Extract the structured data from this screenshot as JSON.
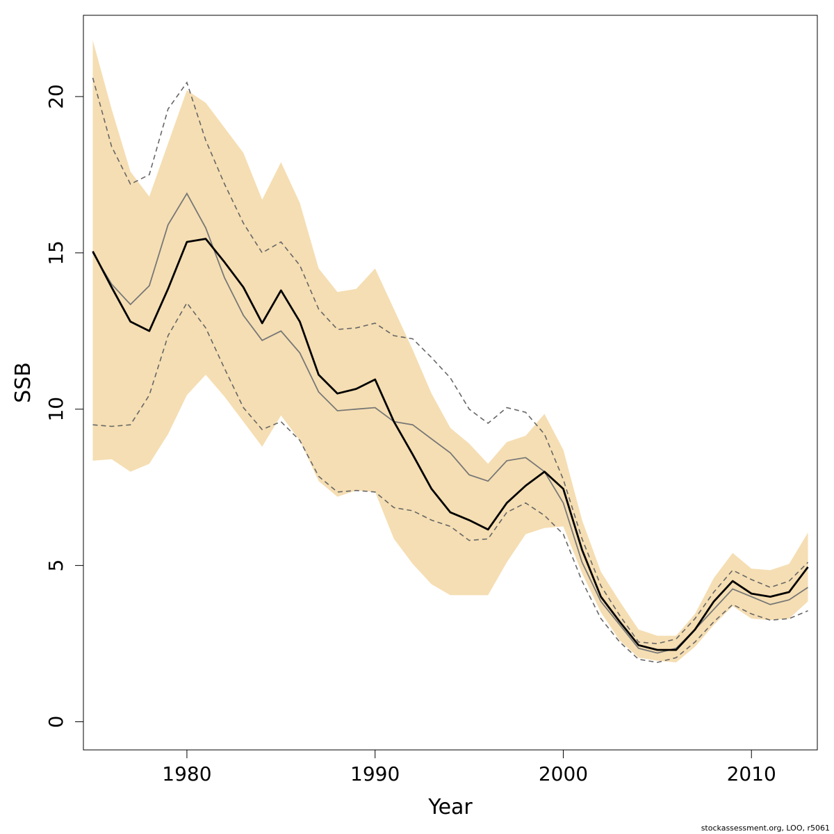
{
  "chart_data": {
    "type": "line",
    "xlabel": "Year",
    "ylabel": "SSB",
    "xlim": [
      1974.5,
      2013.5
    ],
    "ylim": [
      -0.9,
      22.6
    ],
    "x_ticks": [
      1980,
      1990,
      2000,
      2010
    ],
    "y_ticks": [
      0,
      5,
      10,
      15,
      20
    ],
    "x_tick_labels": [
      "1980",
      "1990",
      "2000",
      "2010"
    ],
    "y_tick_labels": [
      "0",
      "5",
      "10",
      "15",
      "20"
    ],
    "colors": {
      "band": "#f5deb3",
      "estimate": "#000000",
      "loo_line": "#777777",
      "loo_bounds": "#666666"
    },
    "x": [
      1975,
      1976,
      1977,
      1978,
      1979,
      1980,
      1981,
      1982,
      1983,
      1984,
      1985,
      1986,
      1987,
      1988,
      1989,
      1990,
      1991,
      1992,
      1993,
      1994,
      1995,
      1996,
      1997,
      1998,
      1999,
      2000,
      2001,
      2002,
      2003,
      2004,
      2005,
      2006,
      2007,
      2008,
      2009,
      2010,
      2011,
      2012,
      2013
    ],
    "series": [
      {
        "role": "band_upper",
        "values": [
          21.8,
          19.6,
          17.6,
          16.8,
          18.5,
          20.2,
          19.8,
          19.0,
          18.2,
          16.7,
          17.9,
          16.6,
          14.5,
          13.75,
          13.85,
          14.5,
          13.2,
          11.9,
          10.5,
          9.4,
          8.9,
          8.25,
          8.95,
          9.15,
          9.85,
          8.7,
          6.45,
          4.8,
          3.85,
          2.95,
          2.75,
          2.75,
          3.45,
          4.6,
          5.4,
          4.9,
          4.85,
          5.05,
          6.05
        ]
      },
      {
        "role": "band_lower",
        "values": [
          8.35,
          8.4,
          8.0,
          8.25,
          9.2,
          10.45,
          11.1,
          10.4,
          9.6,
          8.8,
          9.8,
          9.0,
          7.7,
          7.2,
          7.4,
          7.35,
          5.85,
          5.05,
          4.4,
          4.05,
          4.05,
          4.05,
          5.1,
          6.0,
          6.2,
          6.25,
          4.75,
          3.5,
          2.6,
          2.05,
          1.95,
          1.9,
          2.4,
          3.1,
          3.7,
          3.3,
          3.25,
          3.3,
          3.85
        ]
      },
      {
        "role": "estimate",
        "values": [
          15.05,
          13.9,
          12.8,
          12.5,
          13.85,
          15.35,
          15.45,
          14.7,
          13.9,
          12.75,
          13.8,
          12.8,
          11.1,
          10.5,
          10.65,
          10.95,
          9.6,
          8.55,
          7.45,
          6.7,
          6.45,
          6.15,
          7.0,
          7.55,
          8.0,
          7.45,
          5.5,
          4.0,
          3.2,
          2.45,
          2.3,
          2.3,
          2.95,
          3.85,
          4.5,
          4.1,
          4.0,
          4.15,
          4.95
        ]
      },
      {
        "role": "loo_estimate",
        "values": [
          15.0,
          14.0,
          13.35,
          13.95,
          15.9,
          16.9,
          15.8,
          14.2,
          13.0,
          12.2,
          12.5,
          11.8,
          10.55,
          9.95,
          10.0,
          10.05,
          9.6,
          9.5,
          9.05,
          8.6,
          7.9,
          7.7,
          8.35,
          8.45,
          8.0,
          7.0,
          5.1,
          3.85,
          3.1,
          2.35,
          2.2,
          2.35,
          2.95,
          3.6,
          4.25,
          4.0,
          3.75,
          3.9,
          4.3
        ]
      },
      {
        "role": "loo_upper",
        "values": [
          20.6,
          18.4,
          17.2,
          17.5,
          19.6,
          20.45,
          18.6,
          17.2,
          15.95,
          15.0,
          15.35,
          14.6,
          13.2,
          12.55,
          12.6,
          12.75,
          12.35,
          12.25,
          11.65,
          11.0,
          10.0,
          9.55,
          10.05,
          9.9,
          9.2,
          7.75,
          5.85,
          4.35,
          3.4,
          2.55,
          2.5,
          2.65,
          3.3,
          4.15,
          4.85,
          4.55,
          4.3,
          4.5,
          5.1
        ]
      },
      {
        "role": "loo_lower",
        "values": [
          9.5,
          9.45,
          9.5,
          10.45,
          12.35,
          13.4,
          12.6,
          11.3,
          10.05,
          9.35,
          9.6,
          9.0,
          7.85,
          7.35,
          7.4,
          7.35,
          6.85,
          6.75,
          6.45,
          6.25,
          5.8,
          5.85,
          6.7,
          7.0,
          6.6,
          6.0,
          4.5,
          3.3,
          2.55,
          2.0,
          1.9,
          2.05,
          2.55,
          3.2,
          3.75,
          3.45,
          3.25,
          3.3,
          3.55
        ]
      }
    ]
  },
  "credit": "stockassessment.org, LOO, r5061"
}
